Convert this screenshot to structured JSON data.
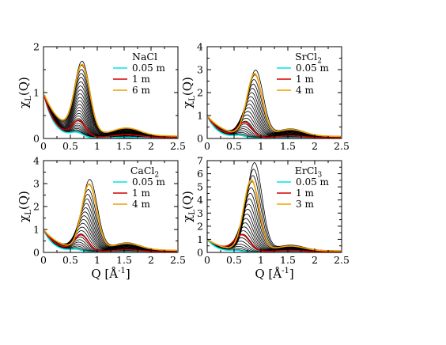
{
  "chart_data": [
    {
      "type": "line",
      "title": "NaCl",
      "xlabel": "",
      "ylabel": "χL(Q)",
      "xlim": [
        0,
        2.5
      ],
      "ylim": [
        0,
        2
      ],
      "xticks": [
        "0",
        "0.5",
        "1",
        "1.5",
        "2",
        "2.5"
      ],
      "yticks": [
        "0",
        "1",
        "2"
      ],
      "legend_position": "top-right",
      "legend": [
        {
          "label": "0.05 m",
          "color": "#00e5e5"
        },
        {
          "label": "1 m",
          "color": "#d40000"
        },
        {
          "label": "6 m",
          "color": "#f0a000"
        }
      ],
      "curve_family": {
        "q0": 0.02,
        "peak_q": [
          0.62,
          0.72
        ],
        "peak_height": [
          0.1,
          1.55
        ],
        "tail": 0.16,
        "count": 26
      },
      "series": [
        {
          "name": "0.05 m",
          "color": "#00e5e5",
          "peak_q": 0.62,
          "peak_height": 0.1,
          "tail": 0.02
        },
        {
          "name": "1 m",
          "color": "#d40000",
          "peak_q": 0.66,
          "peak_height": 0.35,
          "tail": 0.06
        },
        {
          "name": "6 m",
          "color": "#f0a000",
          "peak_q": 0.72,
          "peak_height": 1.48,
          "tail": 0.16
        }
      ]
    },
    {
      "type": "line",
      "title": "SrCl2",
      "xlabel": "",
      "ylabel": "χL(Q)",
      "xlim": [
        0,
        2.5
      ],
      "ylim": [
        0,
        4
      ],
      "xticks": [
        "0",
        "0.5",
        "1",
        "1.5",
        "2",
        "2.5"
      ],
      "yticks": [
        "0",
        "1",
        "2",
        "3",
        "4"
      ],
      "legend_position": "top-right",
      "legend": [
        {
          "label": "0.05 m",
          "color": "#00e5e5"
        },
        {
          "label": "1 m",
          "color": "#d40000"
        },
        {
          "label": "4 m",
          "color": "#f0a000"
        }
      ],
      "curve_family": {
        "q0": 0.02,
        "peak_q": [
          0.6,
          0.9
        ],
        "peak_height": [
          0.1,
          2.85
        ],
        "tail": 0.3,
        "count": 22
      },
      "series": [
        {
          "name": "0.05 m",
          "color": "#00e5e5",
          "peak_q": 0.6,
          "peak_height": 0.1,
          "tail": 0.02
        },
        {
          "name": "1 m",
          "color": "#d40000",
          "peak_q": 0.7,
          "peak_height": 0.65,
          "tail": 0.08
        },
        {
          "name": "4 m",
          "color": "#f0a000",
          "peak_q": 0.88,
          "peak_height": 2.7,
          "tail": 0.28
        }
      ]
    },
    {
      "type": "line",
      "title": "CaCl2",
      "xlabel": "Q [Å⁻¹]",
      "ylabel": "χL(Q)",
      "xlim": [
        0,
        2.5
      ],
      "ylim": [
        0,
        4
      ],
      "xticks": [
        "0",
        "0.5",
        "1",
        "1.5",
        "2",
        "2.5"
      ],
      "yticks": [
        "0",
        "1",
        "2",
        "3",
        "4"
      ],
      "legend_position": "top-right",
      "legend": [
        {
          "label": "0.05 m",
          "color": "#00e5e5"
        },
        {
          "label": "1 m",
          "color": "#d40000"
        },
        {
          "label": "4 m",
          "color": "#f0a000"
        }
      ],
      "curve_family": {
        "q0": 0.02,
        "peak_q": [
          0.6,
          0.86
        ],
        "peak_height": [
          0.1,
          3.05
        ],
        "tail": 0.3,
        "count": 22
      },
      "series": [
        {
          "name": "0.05 m",
          "color": "#00e5e5",
          "peak_q": 0.6,
          "peak_height": 0.1,
          "tail": 0.02
        },
        {
          "name": "1 m",
          "color": "#d40000",
          "peak_q": 0.7,
          "peak_height": 0.7,
          "tail": 0.08
        },
        {
          "name": "4 m",
          "color": "#f0a000",
          "peak_q": 0.85,
          "peak_height": 2.85,
          "tail": 0.28
        }
      ]
    },
    {
      "type": "line",
      "title": "ErCl3",
      "xlabel": "Q [Å⁻¹]",
      "ylabel": "χL(Q)",
      "xlim": [
        0,
        2.5
      ],
      "ylim": [
        0,
        7
      ],
      "xticks": [
        "0",
        "0.5",
        "1",
        "1.5",
        "2",
        "2.5"
      ],
      "yticks": [
        "0",
        "1",
        "2",
        "3",
        "4",
        "5",
        "6",
        "7"
      ],
      "legend_position": "top-right",
      "legend": [
        {
          "label": "0.05 m",
          "color": "#00e5e5"
        },
        {
          "label": "1 m",
          "color": "#d40000"
        },
        {
          "label": "3 m",
          "color": "#f0a000"
        }
      ],
      "curve_family": {
        "q0": 0.02,
        "peak_q": [
          0.55,
          0.88
        ],
        "peak_height": [
          0.1,
          6.7
        ],
        "tail": 0.4,
        "count": 22
      },
      "series": [
        {
          "name": "0.05 m",
          "color": "#00e5e5",
          "peak_q": 0.55,
          "peak_height": 0.1,
          "tail": 0.02
        },
        {
          "name": "1 m",
          "color": "#d40000",
          "peak_q": 0.65,
          "peak_height": 1.2,
          "tail": 0.1
        },
        {
          "name": "3 m",
          "color": "#f0a000",
          "peak_q": 0.82,
          "peak_height": 5.4,
          "tail": 0.35
        }
      ]
    }
  ]
}
